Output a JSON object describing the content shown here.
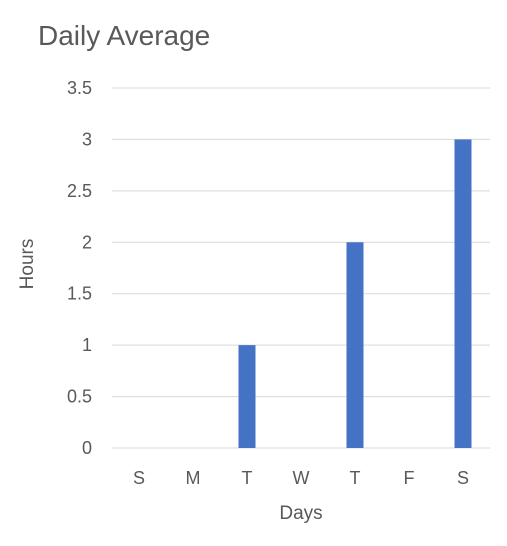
{
  "chart_data": {
    "type": "bar",
    "title": "Daily Average",
    "xlabel": "Days",
    "ylabel": "Hours",
    "categories": [
      "S",
      "M",
      "T",
      "W",
      "T",
      "F",
      "S"
    ],
    "values": [
      0,
      0,
      1,
      0,
      2,
      0,
      3
    ],
    "ylim": [
      0,
      3.5
    ],
    "yticks": [
      "0",
      "0.5",
      "1",
      "1.5",
      "2",
      "2.5",
      "3",
      "3.5"
    ],
    "grid": true,
    "legend": "none",
    "colors": {
      "bar": "#4472C4",
      "grid": "#D9D9D9",
      "text": "#595959"
    }
  }
}
